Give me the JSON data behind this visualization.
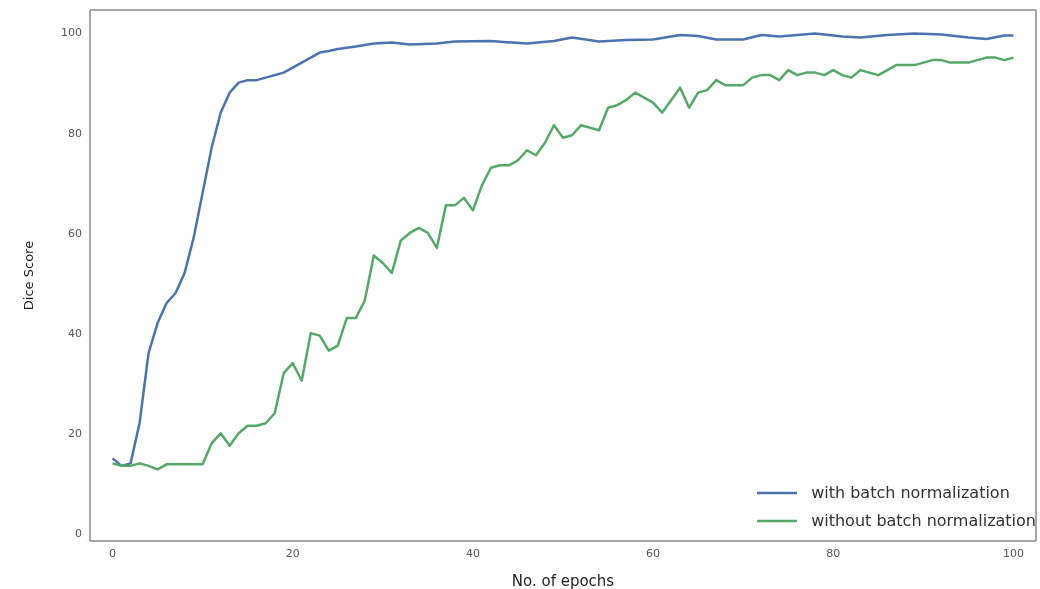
{
  "chart_data": {
    "type": "line",
    "xlabel": "No. of epochs",
    "ylabel": "Dice Score",
    "xlim": [
      -2.5,
      102.5
    ],
    "ylim": [
      -1.5,
      104.5
    ],
    "xticks": [
      0,
      20,
      40,
      60,
      80,
      100
    ],
    "yticks": [
      0,
      20,
      40,
      60,
      80,
      100
    ],
    "legend": "bottom right",
    "marker": "none",
    "line_style": "solid",
    "series": [
      {
        "name": "with batch normalization",
        "color": "#4c72b0",
        "x": [
          0,
          1,
          2,
          3,
          4,
          5,
          6,
          7,
          8,
          9,
          10,
          11,
          12,
          13,
          14,
          15,
          16,
          17,
          18,
          19,
          20,
          21,
          22,
          23,
          24,
          25,
          27,
          29,
          31,
          33,
          36,
          38,
          42,
          46,
          49,
          51,
          54,
          57,
          60,
          63,
          65,
          67,
          70,
          72,
          74,
          76,
          78,
          81,
          83,
          86,
          89,
          92,
          95,
          97,
          99,
          100
        ],
        "values": [
          15,
          13.5,
          14,
          22,
          36,
          42,
          46,
          48,
          52,
          59,
          68,
          77,
          84,
          88,
          90,
          90.5,
          90.5,
          91,
          91.5,
          92,
          93,
          94,
          95,
          96,
          96.3,
          96.7,
          97.2,
          97.8,
          98,
          97.6,
          97.8,
          98.2,
          98.3,
          97.8,
          98.3,
          99,
          98.2,
          98.5,
          98.6,
          99.5,
          99.3,
          98.6,
          98.6,
          99.5,
          99.2,
          99.5,
          99.8,
          99.2,
          99,
          99.5,
          99.8,
          99.6,
          99,
          98.7,
          99.4,
          99.4
        ]
      },
      {
        "name": "without batch normalization",
        "color": "#55a868",
        "x": [
          0,
          1,
          2,
          3,
          4,
          5,
          6,
          7,
          8,
          9,
          10,
          11,
          12,
          13,
          14,
          15,
          16,
          17,
          18,
          19,
          20,
          21,
          22,
          23,
          24,
          25,
          26,
          27,
          28,
          29,
          30,
          31,
          32,
          33,
          34,
          35,
          36,
          37,
          38,
          39,
          40,
          41,
          42,
          43,
          44,
          45,
          46,
          47,
          48,
          49,
          50,
          51,
          52,
          53,
          54,
          55,
          56,
          57,
          58,
          59,
          60,
          61,
          62,
          63,
          64,
          65,
          66,
          67,
          68,
          69,
          70,
          71,
          72,
          73,
          74,
          75,
          76,
          77,
          78,
          79,
          80,
          81,
          82,
          83,
          84,
          85,
          86,
          87,
          88,
          89,
          90,
          91,
          92,
          93,
          94,
          95,
          96,
          97,
          98,
          99,
          100
        ],
        "values": [
          14,
          13.5,
          13.5,
          14,
          13.5,
          12.8,
          13.8,
          13.8,
          13.8,
          13.8,
          13.8,
          18,
          20,
          17.5,
          20,
          21.5,
          21.5,
          22,
          24,
          32,
          34,
          30.5,
          40,
          39.5,
          36.5,
          37.5,
          43,
          43,
          46.5,
          55.5,
          54,
          52,
          58.5,
          60,
          61,
          60,
          57,
          65.5,
          65.5,
          67,
          64.5,
          69.5,
          73,
          73.5,
          73.5,
          74.5,
          76.5,
          75.5,
          78,
          81.5,
          79,
          79.5,
          81.5,
          81,
          80.5,
          85,
          85.5,
          86.5,
          88,
          87,
          86,
          84,
          86.5,
          89,
          85,
          88,
          88.5,
          90.5,
          89.5,
          89.5,
          89.5,
          91,
          91.5,
          91.5,
          90.5,
          92.5,
          91.5,
          92,
          92,
          91.5,
          92.5,
          91.5,
          91,
          92.5,
          92,
          91.5,
          92.5,
          93.5,
          93.5,
          93.5,
          94,
          94.5,
          94.5,
          94,
          94,
          94,
          94.5,
          95,
          95,
          94.5,
          95
        ]
      }
    ]
  }
}
